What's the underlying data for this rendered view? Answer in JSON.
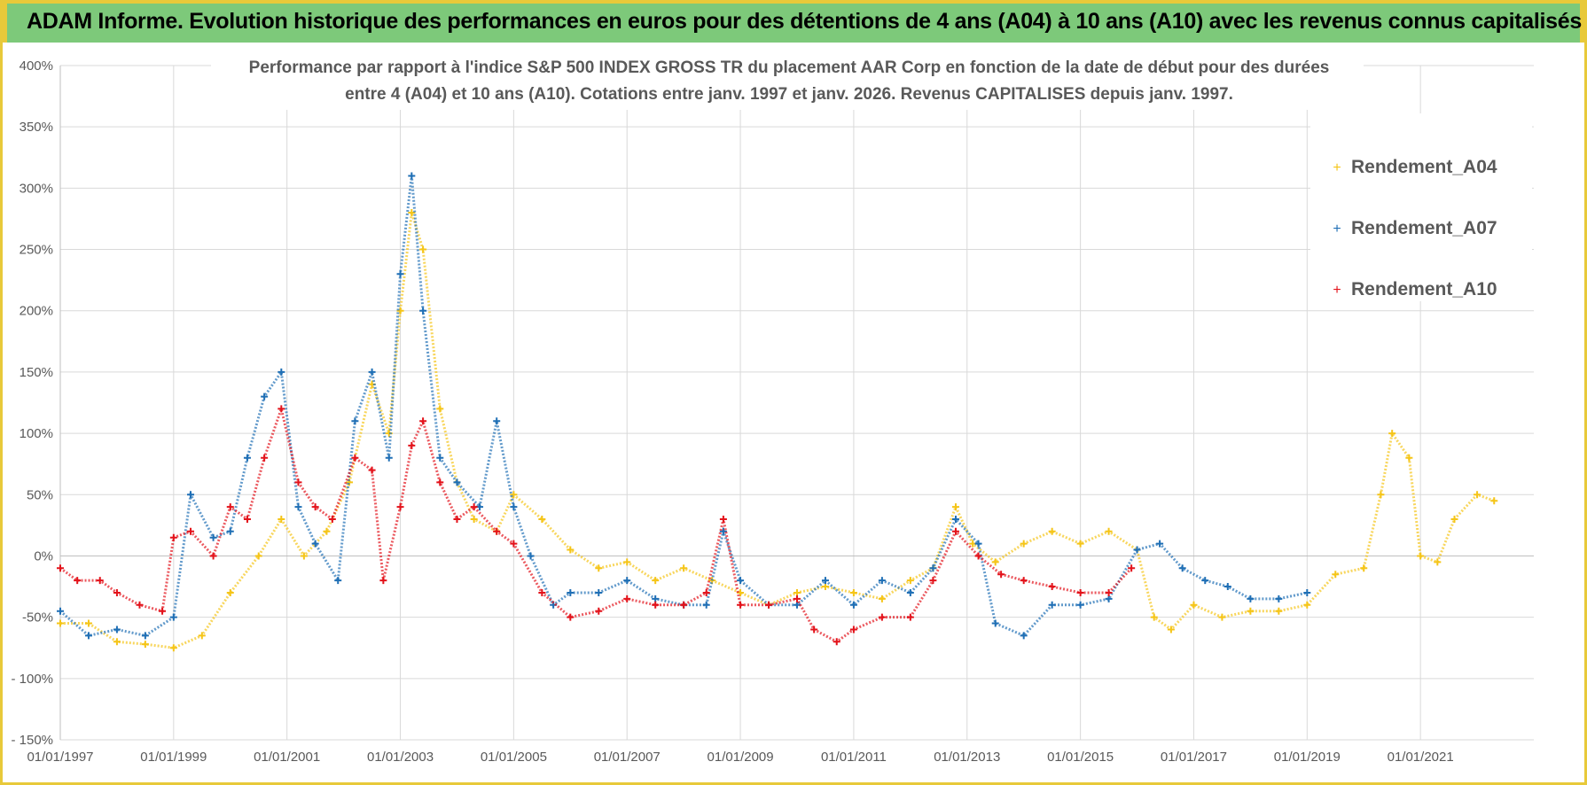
{
  "banner": {
    "title": "ADAM Informe. Evolution historique des performances en euros pour des détentions de 4 ans (A04) à 10 ans (A10) avec les revenus connus capitalisés"
  },
  "colors": {
    "banner_bg": "#7dc97a",
    "banner_border": "#e8c93a",
    "A04": "#f5c518",
    "A07": "#1f6fb5",
    "A10": "#e3131b",
    "grid": "#d9d9d9",
    "axis_text": "#595959"
  },
  "chart_data": {
    "type": "scatter",
    "title_line1": "Performance par rapport à l'indice S&P 500 INDEX GROSS TR  du placement AAR Corp en fonction de la date de début pour des durées",
    "title_line2": "entre 4 (A04) et 10 ans (A10).  Cotations entre janv. 1997 et janv. 2026. Revenus CAPITALISES depuis janv. 1997.",
    "xlabel": "",
    "ylabel": "",
    "x_range": [
      1997.0,
      2023.0
    ],
    "ylim": [
      -150,
      400
    ],
    "y_ticks": [
      400,
      350,
      300,
      250,
      200,
      150,
      100,
      50,
      0,
      -50,
      -100,
      -150
    ],
    "y_tick_labels": [
      "400%",
      "350%",
      "300%",
      "250%",
      "200%",
      "150%",
      "100%",
      "50%",
      "0%",
      "-50%",
      "- 100%",
      "- 150%"
    ],
    "x_ticks": [
      1997,
      1999,
      2001,
      2003,
      2005,
      2007,
      2009,
      2011,
      2013,
      2015,
      2017,
      2019,
      2021
    ],
    "x_tick_labels": [
      "01/01/1997",
      "01/01/1999",
      "01/01/2001",
      "01/01/2003",
      "01/01/2005",
      "01/01/2007",
      "01/01/2009",
      "01/01/2011",
      "01/01/2013",
      "01/01/2015",
      "01/01/2017",
      "01/01/2019",
      "01/01/2021"
    ],
    "legend_position": "top-right",
    "series": [
      {
        "name": "Rendement_A04",
        "key": "A04",
        "x": [
          1997.0,
          1997.5,
          1998.0,
          1998.5,
          1999.0,
          1999.5,
          2000.0,
          2000.5,
          2000.9,
          2001.3,
          2001.7,
          2002.1,
          2002.5,
          2002.8,
          2003.0,
          2003.2,
          2003.4,
          2003.7,
          2004.0,
          2004.3,
          2004.7,
          2005.0,
          2005.5,
          2006.0,
          2006.5,
          2007.0,
          2007.5,
          2008.0,
          2008.5,
          2009.0,
          2009.5,
          2010.0,
          2010.5,
          2011.0,
          2011.5,
          2012.0,
          2012.4,
          2012.8,
          2013.1,
          2013.5,
          2014.0,
          2014.5,
          2015.0,
          2015.5,
          2016.0,
          2016.3,
          2016.6,
          2017.0,
          2017.5,
          2018.0,
          2018.5,
          2019.0,
          2019.5,
          2020.0,
          2020.3,
          2020.5,
          2020.8,
          2021.0,
          2021.3,
          2021.6,
          2022.0,
          2022.3
        ],
        "y": [
          -55,
          -55,
          -70,
          -72,
          -75,
          -65,
          -30,
          0,
          30,
          0,
          20,
          60,
          140,
          100,
          200,
          280,
          250,
          120,
          60,
          30,
          20,
          50,
          30,
          5,
          -10,
          -5,
          -20,
          -10,
          -20,
          -30,
          -40,
          -30,
          -25,
          -30,
          -35,
          -20,
          -10,
          40,
          10,
          -5,
          10,
          20,
          10,
          20,
          5,
          -50,
          -60,
          -40,
          -50,
          -45,
          -45,
          -40,
          -15,
          -10,
          50,
          100,
          80,
          0,
          -5,
          30,
          50,
          45
        ]
      },
      {
        "name": "Rendement_A07",
        "key": "A07",
        "x": [
          1997.0,
          1997.5,
          1998.0,
          1998.5,
          1999.0,
          1999.3,
          1999.7,
          2000.0,
          2000.3,
          2000.6,
          2000.9,
          2001.2,
          2001.5,
          2001.9,
          2002.2,
          2002.5,
          2002.8,
          2003.0,
          2003.2,
          2003.4,
          2003.7,
          2004.0,
          2004.4,
          2004.7,
          2005.0,
          2005.3,
          2005.7,
          2006.0,
          2006.5,
          2007.0,
          2007.5,
          2008.0,
          2008.4,
          2008.7,
          2009.0,
          2009.5,
          2010.0,
          2010.5,
          2011.0,
          2011.5,
          2012.0,
          2012.4,
          2012.8,
          2013.2,
          2013.5,
          2014.0,
          2014.5,
          2015.0,
          2015.5,
          2016.0,
          2016.4,
          2016.8,
          2017.2,
          2017.6,
          2018.0,
          2018.5,
          2019.0
        ],
        "y": [
          -45,
          -65,
          -60,
          -65,
          -50,
          50,
          15,
          20,
          80,
          130,
          150,
          40,
          10,
          -20,
          110,
          150,
          80,
          230,
          310,
          200,
          80,
          60,
          40,
          110,
          40,
          0,
          -40,
          -30,
          -30,
          -20,
          -35,
          -40,
          -40,
          20,
          -20,
          -40,
          -40,
          -20,
          -40,
          -20,
          -30,
          -10,
          30,
          10,
          -55,
          -65,
          -40,
          -40,
          -35,
          5,
          10,
          -10,
          -20,
          -25,
          -35,
          -35,
          -30
        ]
      },
      {
        "name": "Rendement_A10",
        "key": "A10",
        "x": [
          1997.0,
          1997.3,
          1997.7,
          1998.0,
          1998.4,
          1998.8,
          1999.0,
          1999.3,
          1999.7,
          2000.0,
          2000.3,
          2000.6,
          2000.9,
          2001.2,
          2001.5,
          2001.8,
          2002.2,
          2002.5,
          2002.7,
          2003.0,
          2003.2,
          2003.4,
          2003.7,
          2004.0,
          2004.3,
          2004.7,
          2005.0,
          2005.5,
          2006.0,
          2006.5,
          2007.0,
          2007.5,
          2008.0,
          2008.4,
          2008.7,
          2009.0,
          2009.5,
          2010.0,
          2010.3,
          2010.7,
          2011.0,
          2011.5,
          2012.0,
          2012.4,
          2012.8,
          2013.2,
          2013.6,
          2014.0,
          2014.5,
          2015.0,
          2015.5,
          2015.9
        ],
        "y": [
          -10,
          -20,
          -20,
          -30,
          -40,
          -45,
          15,
          20,
          0,
          40,
          30,
          80,
          120,
          60,
          40,
          30,
          80,
          70,
          -20,
          40,
          90,
          110,
          60,
          30,
          40,
          20,
          10,
          -30,
          -50,
          -45,
          -35,
          -40,
          -40,
          -30,
          30,
          -40,
          -40,
          -35,
          -60,
          -70,
          -60,
          -50,
          -50,
          -20,
          20,
          0,
          -15,
          -20,
          -25,
          -30,
          -30,
          -10
        ]
      }
    ]
  }
}
